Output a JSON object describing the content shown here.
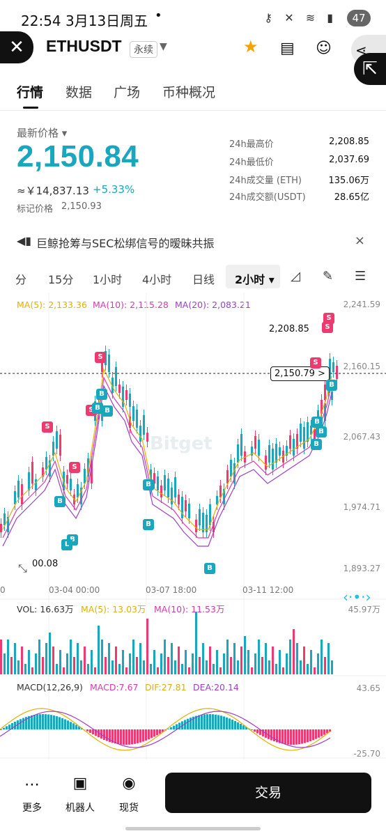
{
  "status_bar": {
    "time": "22:54",
    "date": "3月13日周五",
    "battery": "47"
  },
  "header": {
    "pair": "ETHUSDT",
    "contract_type": "永续"
  },
  "tabs": [
    "行情",
    "数据",
    "广场",
    "币种概况"
  ],
  "ticker": {
    "last_price_label": "最新价格",
    "last_price": "2,150.84",
    "cny": "≈￥14,837.13",
    "change": "+5.33%",
    "mark_label": "标记价格",
    "mark_price": "2,150.93",
    "stats": [
      {
        "k": "24h最高价",
        "v": "2,208.85"
      },
      {
        "k": "24h最低价",
        "v": "2,037.69"
      },
      {
        "k": "24h成交量 (ETH)",
        "v": "135.06万"
      },
      {
        "k": "24h成交额(USDT)",
        "v": "28.65亿"
      }
    ]
  },
  "news": {
    "text": "巨鲸抢筹与SEC松绑信号的暧昧共振"
  },
  "intervals": [
    "分",
    "15分",
    "1小时",
    "4小时",
    "日线",
    "2小时"
  ],
  "chart": {
    "ma": {
      "ma5": "MA(5): 2,133.36",
      "ma10": "MA(10): 2,115.28",
      "ma20": "MA(20): 2,083.21"
    },
    "y_ticks": [
      "2,241.59",
      "2,160.15",
      "2,067.43",
      "1,974.71",
      "1,893.27"
    ],
    "high_label": "2,208.85",
    "low_label": "00.08",
    "current_label": "2,150.79 >",
    "x_ticks": [
      "0",
      "03-04 00:00",
      "03-07 18:00",
      "03-11 12:00"
    ],
    "watermark": "Bitget",
    "vol": {
      "vol": "VOL: 16.63万",
      "ma5": "MA(5): 13.03万",
      "ma10": "MA(10): 11.53万",
      "max": "45.97万"
    },
    "macd": {
      "label": "MACD(12,26,9)",
      "macd": "MACD:7.67",
      "dif": "DIF:27.81",
      "dea": "DEA:20.14",
      "max": "43.65",
      "min": "-25.70"
    }
  },
  "bottom_nav": {
    "more": "更多",
    "robot": "机器人",
    "spot": "现货",
    "trade": "交易"
  },
  "colors": {
    "up": "#1aa6bd",
    "down": "#ee3a6f",
    "ma5": "#e2b000",
    "ma10": "#d63ab0",
    "ma20": "#9b3fc7"
  }
}
